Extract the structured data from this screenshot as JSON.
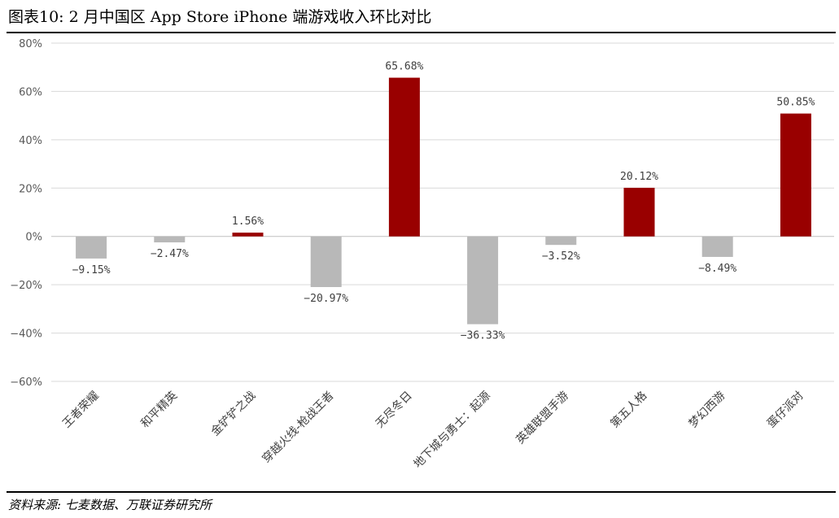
{
  "header": {
    "title": "图表10: 2 月中国区 App Store iPhone 端游戏收入环比对比"
  },
  "footer": {
    "source": "资料来源: 七麦数据、万联证券研究所"
  },
  "chart_data": {
    "type": "bar",
    "title": "",
    "xlabel": "",
    "ylabel": "",
    "ylim": [
      -60,
      80
    ],
    "yticks": [
      80,
      60,
      40,
      20,
      0,
      -20,
      -40,
      -60
    ],
    "ytick_labels": [
      "80%",
      "60%",
      "40%",
      "20%",
      "0%",
      "−20%",
      "−40%",
      "−60%"
    ],
    "grid": true,
    "legend": "none",
    "categories": [
      "王者荣耀",
      "和平精英",
      "金铲铲之战",
      "穿越火线-枪战王者",
      "无尽冬日",
      "地下城与勇士：起源",
      "英雄联盟手游",
      "第五人格",
      "梦幻西游",
      "蛋仔派对"
    ],
    "values": [
      -9.15,
      -2.47,
      1.56,
      -20.97,
      65.68,
      -36.33,
      -3.52,
      20.12,
      -8.49,
      50.85
    ],
    "data_labels": [
      "−9.15%",
      "−2.47%",
      "1.56%",
      "−20.97%",
      "65.68%",
      "−36.33%",
      "−3.52%",
      "20.12%",
      "−8.49%",
      "50.85%"
    ],
    "colors": {
      "positive": "#990000",
      "negative": "#b8b8b8",
      "grid": "#d9d9d9",
      "axis": "#bfbfbf"
    }
  }
}
